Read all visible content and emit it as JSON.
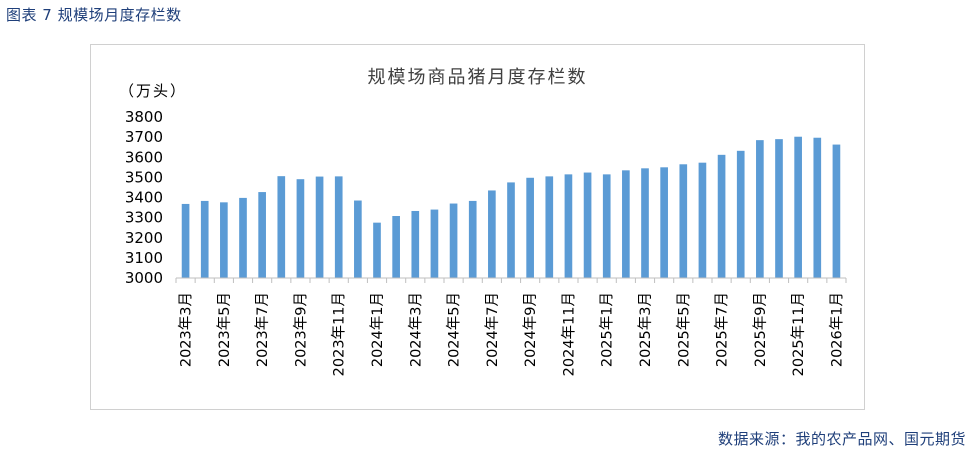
{
  "caption": "图表 7  规模场月度存栏数",
  "source": "数据来源：我的农产品网、国元期货",
  "colors": {
    "bar": "#5b9bd5",
    "axis": "#bfbfbf",
    "caption": "#1f3f7a"
  },
  "chart_data": {
    "type": "bar",
    "title": "规模场商品猪月度存栏数",
    "ylabel": "（万头）",
    "ylim": [
      3000,
      3800
    ],
    "yticks": [
      3000,
      3100,
      3200,
      3300,
      3400,
      3500,
      3600,
      3700,
      3800
    ],
    "grid": false,
    "legend": "none",
    "categories": [
      "2023年3月",
      "2023年4月",
      "2023年5月",
      "2023年6月",
      "2023年7月",
      "2023年8月",
      "2023年9月",
      "2023年10月",
      "2023年11月",
      "2023年12月",
      "2024年1月",
      "2024年2月",
      "2024年3月",
      "2024年4月",
      "2024年5月",
      "2024年6月",
      "2024年7月",
      "2024年8月",
      "2024年9月",
      "2024年10月",
      "2024年11月",
      "2024年12月",
      "2025年1月",
      "2025年2月",
      "2025年3月",
      "2025年4月",
      "2025年5月",
      "2025年6月",
      "2025年7月",
      "2025年8月",
      "2025年9月",
      "2025年10月",
      "2025年11月",
      "2025年12月",
      "2026年1月"
    ],
    "tick_labels": [
      "2023年3月",
      "2023年5月",
      "2023年7月",
      "2023年9月",
      "2023年11月",
      "2024年1月",
      "2024年3月",
      "2024年5月",
      "2024年7月",
      "2024年9月",
      "2024年11月",
      "2025年1月",
      "2025年3月",
      "2025年5月",
      "2025年7月",
      "2025年9月",
      "2025年11月",
      "2026年1月"
    ],
    "values": [
      3368,
      3383,
      3376,
      3398,
      3427,
      3506,
      3491,
      3504,
      3505,
      3385,
      3275,
      3308,
      3333,
      3340,
      3370,
      3383,
      3435,
      3475,
      3498,
      3505,
      3515,
      3524,
      3515,
      3535,
      3545,
      3550,
      3565,
      3573,
      3612,
      3632,
      3685,
      3690,
      3702,
      3697,
      3663
    ]
  }
}
